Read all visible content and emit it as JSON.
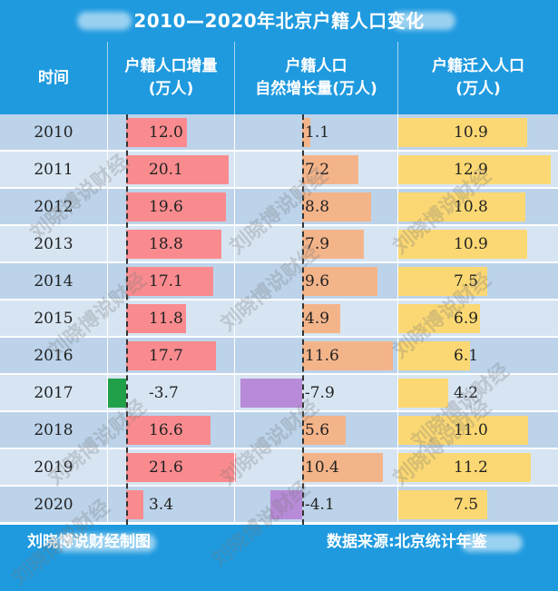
{
  "title": "2010—2020年北京户籍人口变化",
  "headers": {
    "time": "时间",
    "col1": [
      "户籍人口增量",
      "(万人)"
    ],
    "col2": [
      "户籍人口",
      "自然增长量(万人)"
    ],
    "col3": [
      "户籍迁入人口",
      "(万人)"
    ]
  },
  "colors": {
    "frame": "#1f9adf",
    "row_odd": "#bcd3ea",
    "row_even": "#d7e5f3",
    "increment_positive": "#f98b8f",
    "increment_negative": "#21a04a",
    "natural_positive": "#f4b48a",
    "natural_negative": "#b88bd8",
    "migration": "#fbd873"
  },
  "footer": {
    "left": "刘晓博说财经制图",
    "right": "数据来源:北京统计年鉴"
  },
  "watermark": "刘晓博说财经",
  "chart_data": {
    "type": "table",
    "categories": [
      "2010",
      "2011",
      "2012",
      "2013",
      "2014",
      "2015",
      "2016",
      "2017",
      "2018",
      "2019",
      "2020"
    ],
    "series": [
      {
        "name": "户籍人口增量(万人)",
        "values": [
          "12.0",
          "20.1",
          "19.6",
          "18.8",
          "17.1",
          "11.8",
          "17.7",
          "-3.7",
          "16.6",
          "21.6",
          "3.4"
        ]
      },
      {
        "name": "户籍人口自然增长量(万人)",
        "values": [
          "1.1",
          "7.2",
          "8.8",
          "7.9",
          "9.6",
          "4.9",
          "11.6",
          "-7.9",
          "5.6",
          "10.4",
          "-4.1"
        ]
      },
      {
        "name": "户籍迁入人口(万人)",
        "values": [
          "10.9",
          "12.9",
          "10.8",
          "10.9",
          "7.5",
          "6.9",
          "6.1",
          "4.2",
          "11.0",
          "11.2",
          "7.5"
        ]
      }
    ]
  }
}
